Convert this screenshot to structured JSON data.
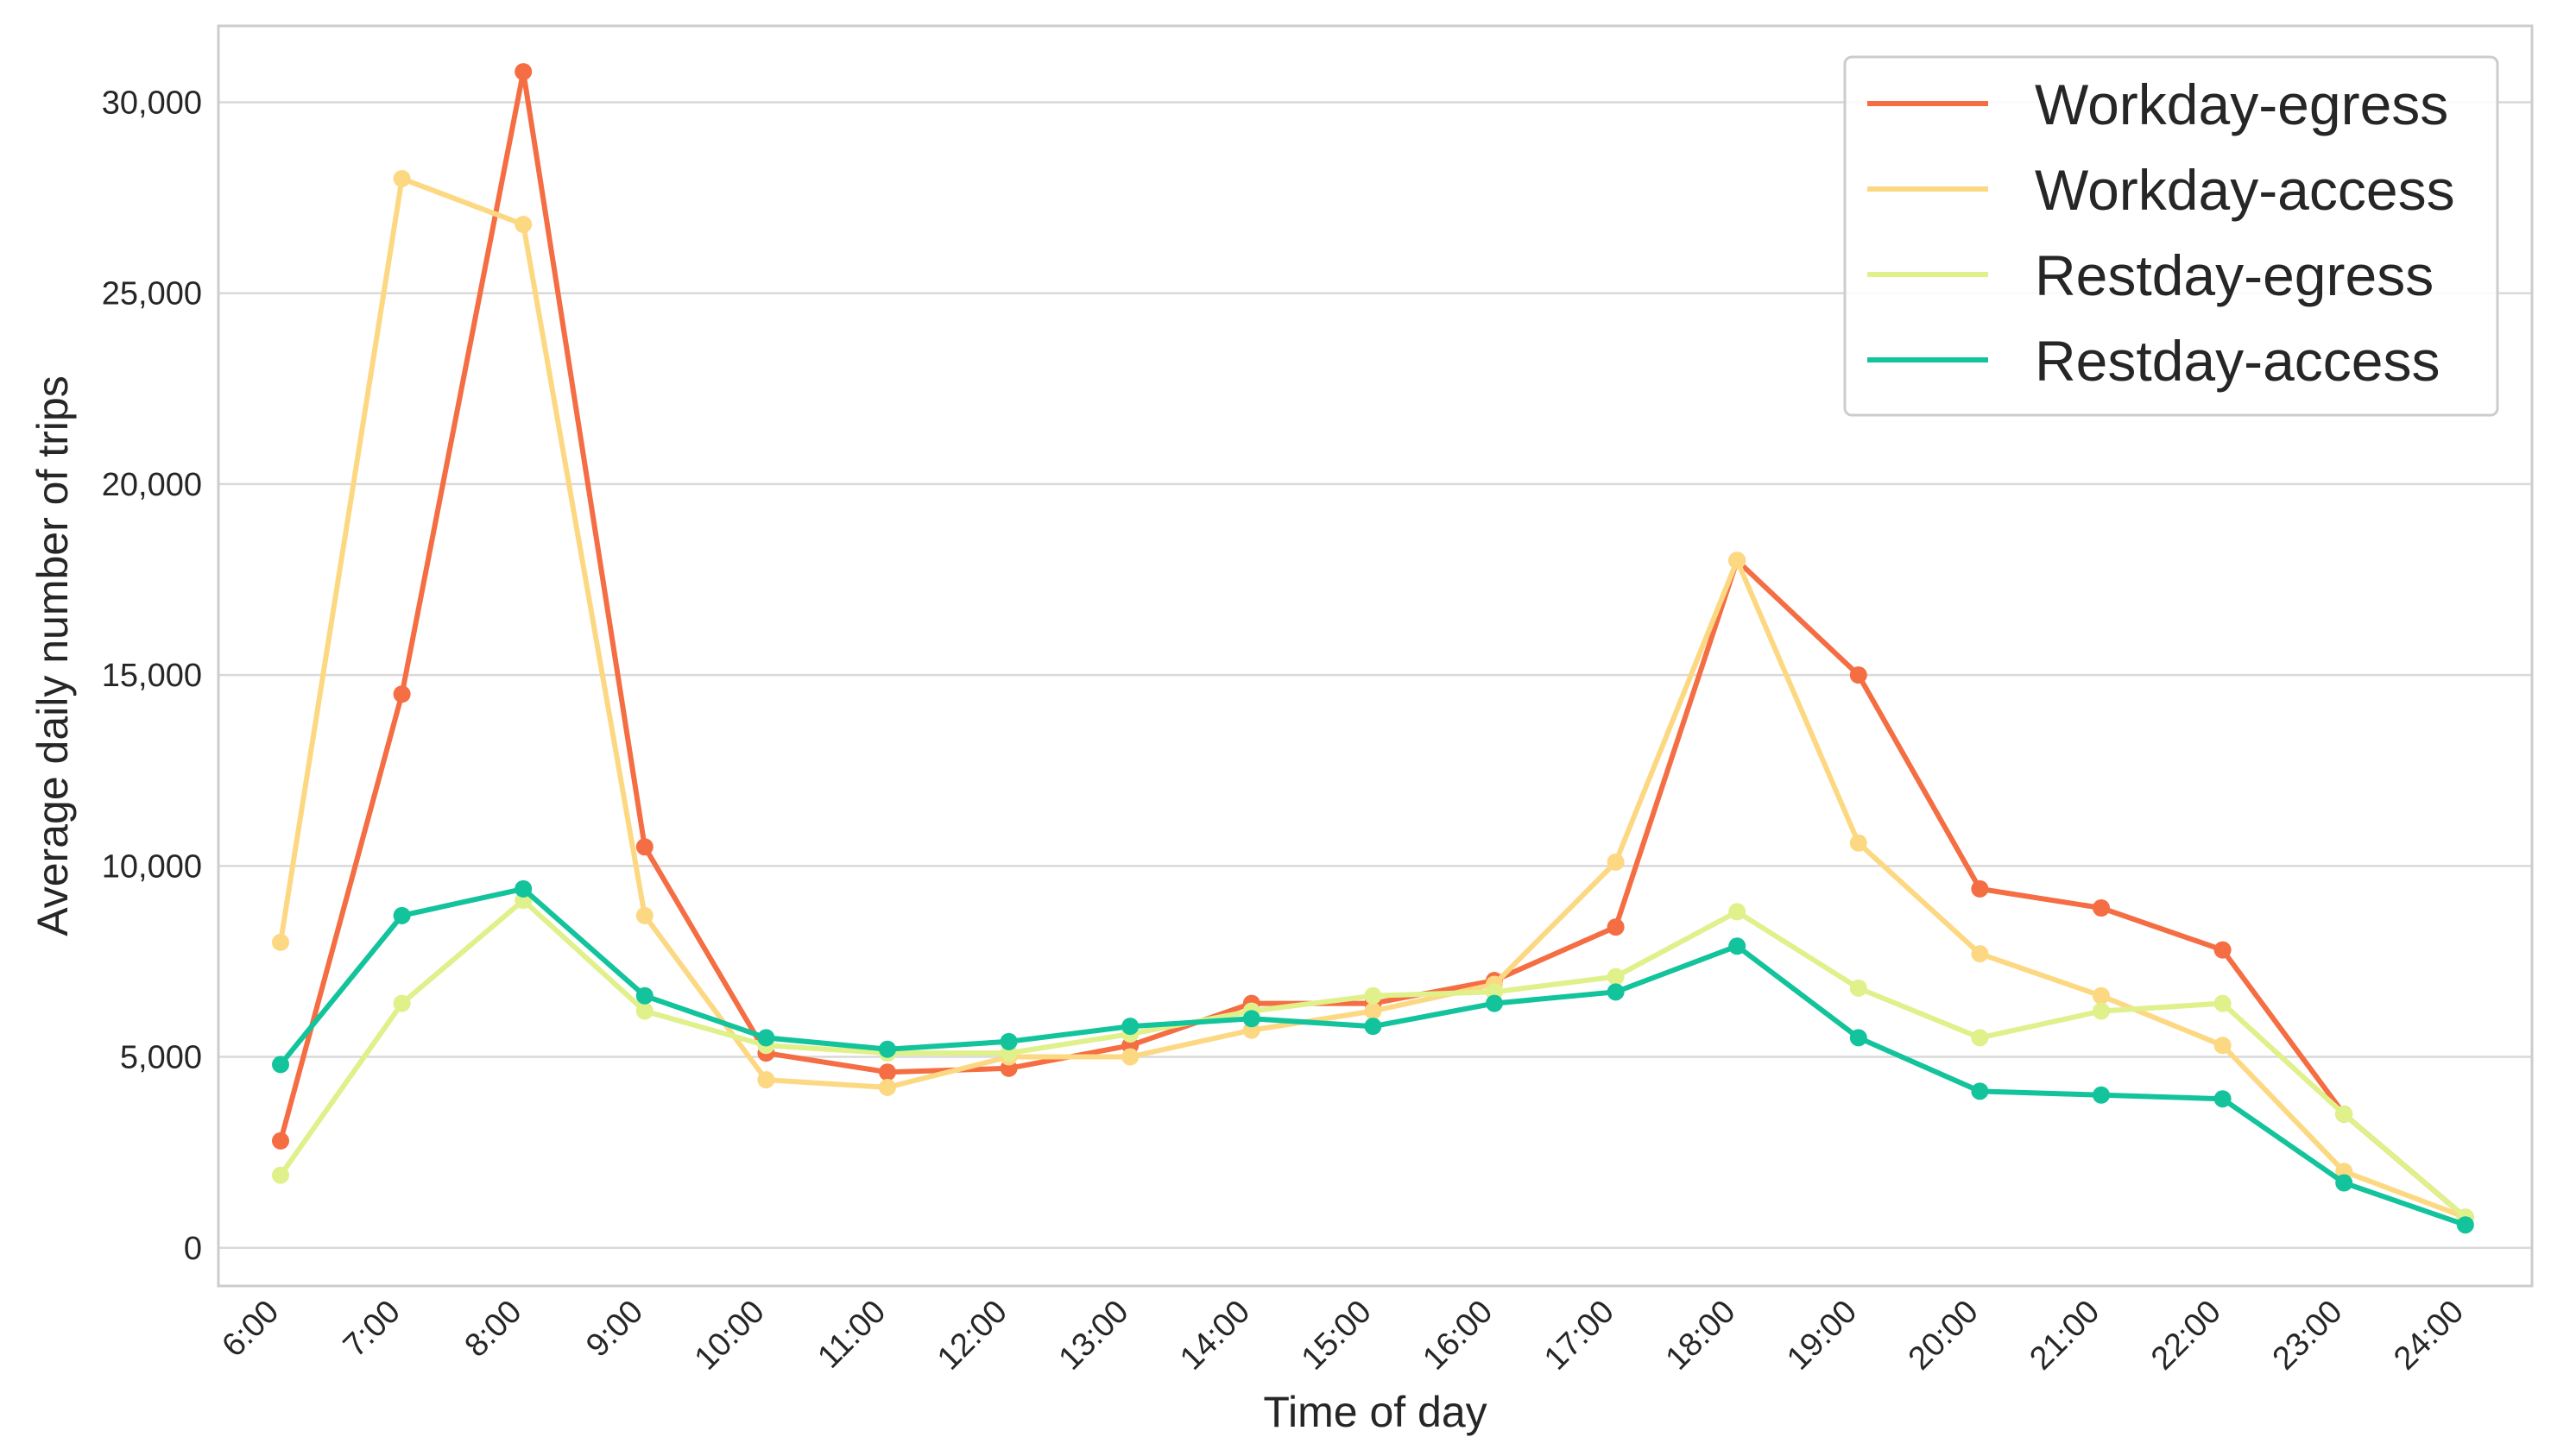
{
  "chart_data": {
    "type": "line",
    "title": "",
    "xlabel": "Time of day",
    "ylabel": "Average daily number of trips",
    "categories": [
      "6:00",
      "7:00",
      "8:00",
      "9:00",
      "10:00",
      "11:00",
      "12:00",
      "13:00",
      "14:00",
      "15:00",
      "16:00",
      "17:00",
      "18:00",
      "19:00",
      "20:00",
      "21:00",
      "22:00",
      "23:00",
      "24:00"
    ],
    "ylim": [
      -1000,
      32000
    ],
    "yticks": [
      0,
      5000,
      10000,
      15000,
      20000,
      25000,
      30000
    ],
    "ytick_labels": [
      "0",
      "5,000",
      "10,000",
      "15,000",
      "20,000",
      "25,000",
      "30,000"
    ],
    "grid": true,
    "legend_position": "top-right",
    "series": [
      {
        "name": "Workday-egress",
        "color": "#f46d43",
        "values": [
          2800,
          14500,
          30800,
          10500,
          5100,
          4600,
          4700,
          5300,
          6400,
          6400,
          7000,
          8400,
          18000,
          15000,
          9400,
          8900,
          7800,
          3500,
          800
        ]
      },
      {
        "name": "Workday-access",
        "color": "#fdd882",
        "values": [
          8000,
          28000,
          26800,
          8700,
          4400,
          4200,
          5000,
          5000,
          5700,
          6200,
          6900,
          10100,
          18000,
          10600,
          7700,
          6600,
          5300,
          2000,
          800
        ]
      },
      {
        "name": "Restday-egress",
        "color": "#e0f08a",
        "values": [
          1900,
          6400,
          9100,
          6200,
          5300,
          5100,
          5100,
          5600,
          6200,
          6600,
          6700,
          7100,
          8800,
          6800,
          5500,
          6200,
          6400,
          3500,
          800
        ]
      },
      {
        "name": "Restday-access",
        "color": "#12c39c",
        "values": [
          4800,
          8700,
          9400,
          6600,
          5500,
          5200,
          5400,
          5800,
          6000,
          5800,
          6400,
          6700,
          7900,
          5500,
          4100,
          4000,
          3900,
          1700,
          600
        ]
      }
    ]
  }
}
